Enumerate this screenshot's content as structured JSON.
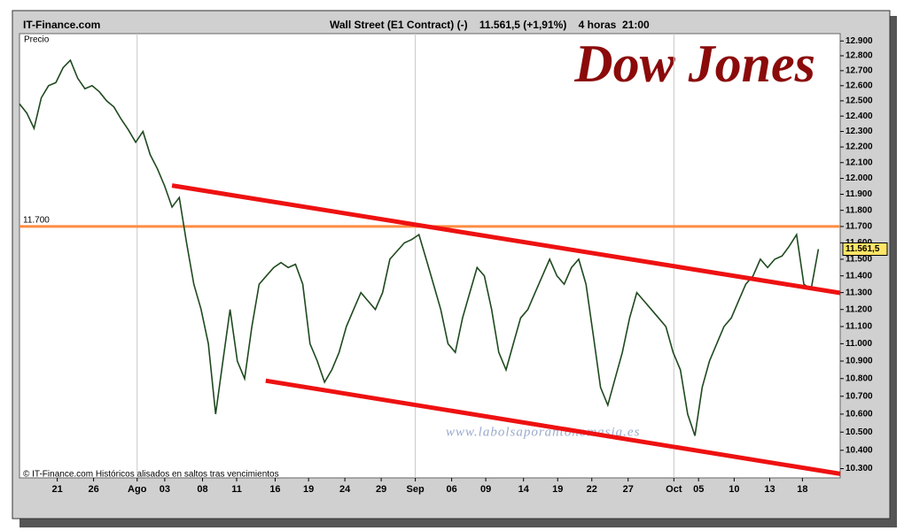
{
  "chart_data": {
    "type": "line",
    "source": "IT-Finance.com",
    "title": "Wall Street (E1 Contract) (-)    11.561,5 (+1,91%)    4 horas  21:00",
    "ylabel": "Precio",
    "watermark": "Dow Jones",
    "website": "www.labolsaporantonomasia.es",
    "footnote": "© IT-Finance.com Históricos alisados en saltos tras vencimientos",
    "log_scale": true,
    "xlim": [
      0,
      113
    ],
    "ylim": [
      10250,
      12950
    ],
    "yticks": [
      {
        "value": 10300,
        "label": "10.300"
      },
      {
        "value": 10400,
        "label": "10.400"
      },
      {
        "value": 10500,
        "label": "10.500"
      },
      {
        "value": 10600,
        "label": "10.600"
      },
      {
        "value": 10700,
        "label": "10.700"
      },
      {
        "value": 10800,
        "label": "10.800"
      },
      {
        "value": 10900,
        "label": "10.900"
      },
      {
        "value": 11000,
        "label": "11.000"
      },
      {
        "value": 11100,
        "label": "11.100"
      },
      {
        "value": 11200,
        "label": "11.200"
      },
      {
        "value": 11300,
        "label": "11.300"
      },
      {
        "value": 11400,
        "label": "11.400"
      },
      {
        "value": 11500,
        "label": "11.500"
      },
      {
        "value": 11600,
        "label": "11.600"
      },
      {
        "value": 11700,
        "label": "11.700"
      },
      {
        "value": 11800,
        "label": "11.800"
      },
      {
        "value": 11900,
        "label": "11.900"
      },
      {
        "value": 12000,
        "label": "12.000"
      },
      {
        "value": 12100,
        "label": "12.100"
      },
      {
        "value": 12200,
        "label": "12.200"
      },
      {
        "value": 12300,
        "label": "12.300"
      },
      {
        "value": 12400,
        "label": "12.400"
      },
      {
        "value": 12500,
        "label": "12.500"
      },
      {
        "value": 12600,
        "label": "12.600"
      },
      {
        "value": 12700,
        "label": "12.700"
      },
      {
        "value": 12800,
        "label": "12.800"
      },
      {
        "value": 12900,
        "label": "12.900"
      }
    ],
    "xticks": [
      {
        "value": 5.2,
        "label": "21"
      },
      {
        "value": 10.2,
        "label": "26"
      },
      {
        "value": 16.2,
        "label": "Ago"
      },
      {
        "value": 20,
        "label": "03"
      },
      {
        "value": 25.2,
        "label": "08"
      },
      {
        "value": 29.9,
        "label": "11"
      },
      {
        "value": 35.2,
        "label": "16"
      },
      {
        "value": 39.8,
        "label": "19"
      },
      {
        "value": 44.8,
        "label": "24"
      },
      {
        "value": 49.8,
        "label": "29"
      },
      {
        "value": 54.5,
        "label": "Sep"
      },
      {
        "value": 59.5,
        "label": "06"
      },
      {
        "value": 64.2,
        "label": "09"
      },
      {
        "value": 69.4,
        "label": "14"
      },
      {
        "value": 74.1,
        "label": "19"
      },
      {
        "value": 78.8,
        "label": "22"
      },
      {
        "value": 83.8,
        "label": "27"
      },
      {
        "value": 90.1,
        "label": "Oct"
      },
      {
        "value": 93.5,
        "label": "05"
      },
      {
        "value": 98.4,
        "label": "10"
      },
      {
        "value": 103.3,
        "label": "13"
      },
      {
        "value": 107.8,
        "label": "18"
      }
    ],
    "x": [
      0,
      1,
      2,
      3,
      4,
      5,
      6,
      7,
      8,
      9,
      10,
      11,
      12,
      13,
      14,
      15,
      16,
      17,
      18,
      19,
      20,
      21,
      22,
      23,
      24,
      25,
      26,
      27,
      28,
      29,
      30,
      31,
      32,
      33,
      34,
      35,
      36,
      37,
      38,
      39,
      40,
      41,
      42,
      43,
      44,
      45,
      46,
      47,
      48,
      49,
      50,
      51,
      52,
      53,
      54,
      55,
      56,
      57,
      58,
      59,
      60,
      61,
      62,
      63,
      64,
      65,
      66,
      67,
      68,
      69,
      70,
      71,
      72,
      73,
      74,
      75,
      76,
      77,
      78,
      79,
      80,
      81,
      82,
      83,
      84,
      85,
      86,
      87,
      88,
      89,
      90,
      91,
      92,
      93,
      94,
      95,
      96,
      97,
      98,
      99,
      100,
      101,
      102,
      103,
      104,
      105,
      106,
      107,
      108,
      109,
      110
    ],
    "series": [
      {
        "name": "Wall Street",
        "color": "#1f4a1f",
        "values": [
          12480,
          12420,
          12320,
          12520,
          12600,
          12620,
          12720,
          12770,
          12650,
          12580,
          12600,
          12560,
          12500,
          12460,
          12380,
          12310,
          12230,
          12300,
          12150,
          12060,
          11950,
          11820,
          11880,
          11600,
          11350,
          11200,
          11000,
          10600,
          10900,
          11200,
          10900,
          10800,
          11100,
          11350,
          11400,
          11450,
          11480,
          11450,
          11470,
          11350,
          11000,
          10900,
          10780,
          10850,
          10950,
          11100,
          11200,
          11300,
          11250,
          11200,
          11300,
          11500,
          11550,
          11600,
          11620,
          11650,
          11500,
          11350,
          11200,
          11000,
          10950,
          11150,
          11300,
          11450,
          11400,
          11200,
          10950,
          10850,
          11000,
          11150,
          11200,
          11300,
          11400,
          11500,
          11400,
          11350,
          11450,
          11500,
          11350,
          11050,
          10750,
          10650,
          10800,
          10950,
          11150,
          11300,
          11250,
          11200,
          11150,
          11100,
          10950,
          10850,
          10600,
          10480,
          10750,
          10900,
          11000,
          11100,
          11150,
          11250,
          11350,
          11400,
          11500,
          11450,
          11500,
          11520,
          11580,
          11650,
          11350,
          11320,
          11561.5
        ]
      }
    ],
    "last_value_label": "11.561,5",
    "hline": {
      "value": 11700,
      "label": "11.700",
      "color": "#ff8c42"
    },
    "trendlines": [
      {
        "x": [
          21,
          113
        ],
        "y": [
          11955,
          11298
        ],
        "color": "#ee1111"
      },
      {
        "x": [
          33.9,
          113
        ],
        "y": [
          10788,
          10272
        ],
        "color": "#ee1111"
      }
    ]
  }
}
